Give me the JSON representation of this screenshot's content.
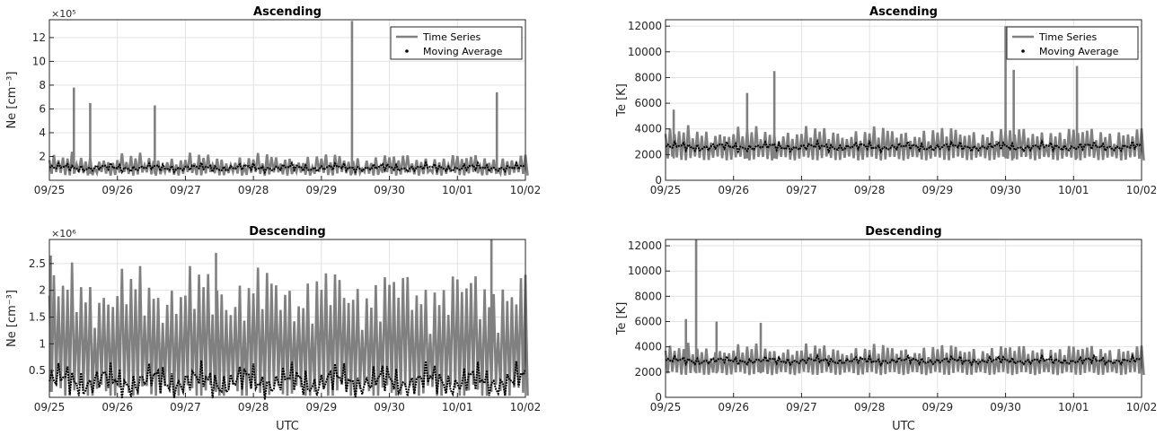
{
  "colors": {
    "time_series": "#808080",
    "moving_average": "#000000",
    "grid": "#e3e3e3",
    "axis": "#262626"
  },
  "chart_data": [
    {
      "id": "ne-asc",
      "type": "line",
      "title": "Ascending",
      "xlabel": "",
      "ylabel": "Ne [cm⁻³]",
      "exponent_label": "×10⁵",
      "ylim": [
        0,
        13.5
      ],
      "yticks": [
        2,
        4,
        6,
        8,
        10,
        12
      ],
      "ytick_labels": [
        "2",
        "4",
        "6",
        "8",
        "10",
        "12"
      ],
      "xticks": [
        "09/25",
        "09/26",
        "09/27",
        "09/28",
        "09/29",
        "09/30",
        "10/01",
        "10/02"
      ],
      "grid": true,
      "legend_placement": "top-right",
      "legend": [
        "Time Series",
        "Moving Average"
      ],
      "model": {
        "max_base": 1.7,
        "min_base": 0.55,
        "ma_base": 1.05,
        "amp": 0.5
      },
      "series": [
        {
          "name": "Time Series",
          "x": [
            0,
            0.5,
            1,
            1.5,
            2,
            2.5,
            3,
            3.5,
            4,
            4.5,
            5,
            5.5,
            6,
            6.5,
            7
          ],
          "y": [
            3.5,
            7.8,
            3,
            5.8,
            2.2,
            3.4,
            2.5,
            3.8,
            3.2,
            13.4,
            3,
            6.2,
            4,
            7.4,
            3.2
          ]
        },
        {
          "name": "Moving Average",
          "x": [
            0,
            0.5,
            1,
            1.5,
            2,
            2.5,
            3,
            3.5,
            4,
            4.5,
            5,
            5.5,
            6,
            6.5,
            7
          ],
          "y": [
            1.1,
            1.6,
            0.9,
            1.5,
            1.1,
            1.4,
            1.2,
            1.3,
            1.2,
            2.2,
            1.1,
            1.8,
            1.6,
            1.4,
            1.3
          ]
        }
      ],
      "spikes": [
        [
          0.36,
          7.8
        ],
        [
          0.6,
          6.5
        ],
        [
          1.55,
          6.3
        ],
        [
          4.45,
          13.4
        ],
        [
          6.58,
          7.4
        ]
      ]
    },
    {
      "id": "te-asc",
      "type": "line",
      "title": "Ascending",
      "xlabel": "",
      "ylabel": "Te [K]",
      "ylim": [
        0,
        12500
      ],
      "yticks": [
        0,
        2000,
        4000,
        6000,
        8000,
        10000,
        12000
      ],
      "ytick_labels": [
        "0",
        "2000",
        "4000",
        "6000",
        "8000",
        "10000",
        "12000"
      ],
      "xticks": [
        "09/25",
        "09/26",
        "09/27",
        "09/28",
        "09/29",
        "09/30",
        "10/01",
        "10/02"
      ],
      "grid": true,
      "legend_placement": "top-right",
      "legend": [
        "Time Series",
        "Moving Average"
      ],
      "model": {
        "max_base": 3600,
        "min_base": 1700,
        "ma_base": 2600,
        "amp": 500
      },
      "series": [
        {
          "name": "Time Series",
          "x": [
            0,
            0.5,
            1,
            1.5,
            2,
            2.5,
            3,
            3.5,
            4,
            4.5,
            5,
            5.5,
            6,
            6.5,
            7
          ],
          "y": [
            5500,
            4800,
            6800,
            8500,
            3600,
            3400,
            3800,
            3500,
            4000,
            4200,
            12000,
            8600,
            8900,
            3900,
            3600
          ]
        },
        {
          "name": "Moving Average",
          "x": [
            0,
            0.5,
            1,
            1.5,
            2,
            2.5,
            3,
            3.5,
            4,
            4.5,
            5,
            5.5,
            6,
            6.5,
            7
          ],
          "y": [
            3100,
            2900,
            2800,
            2700,
            2500,
            2400,
            2500,
            2600,
            2500,
            2600,
            2700,
            2500,
            2400,
            2500,
            2400
          ]
        }
      ],
      "spikes": [
        [
          0.12,
          5500
        ],
        [
          1.2,
          6800
        ],
        [
          1.6,
          8500
        ],
        [
          5.0,
          12000
        ],
        [
          5.12,
          8600
        ],
        [
          6.05,
          8900
        ]
      ]
    },
    {
      "id": "ne-desc",
      "type": "line",
      "title": "Descending",
      "xlabel": "UTC",
      "ylabel": "Ne [cm⁻³]",
      "exponent_label": "×10⁶",
      "ylim": [
        0,
        2.95
      ],
      "yticks": [
        0.5,
        1,
        1.5,
        2,
        2.5
      ],
      "ytick_labels": [
        "0.5",
        "1",
        "1.5",
        "2",
        "2.5"
      ],
      "xticks": [
        "09/25",
        "09/26",
        "09/27",
        "09/28",
        "09/29",
        "09/30",
        "10/01",
        "10/02"
      ],
      "grid": true,
      "legend_placement": "none",
      "legend": [],
      "model": {
        "max_base": 1.9,
        "min_base": 0.1,
        "ma_base": 0.3,
        "amp": 0.45
      },
      "series": [
        {
          "name": "Time Series",
          "x": [
            0,
            0.5,
            1,
            1.5,
            2,
            2.5,
            3,
            3.5,
            4,
            4.5,
            5,
            5.5,
            6,
            6.5,
            7
          ],
          "y": [
            2.65,
            2.1,
            2.4,
            2.6,
            2.2,
            2.7,
            2.1,
            2.2,
            1.8,
            2.4,
            2.6,
            2.3,
            2.5,
            2.95,
            2.6
          ]
        },
        {
          "name": "Moving Average",
          "x": [
            0,
            0.5,
            1,
            1.5,
            2,
            2.5,
            3,
            3.5,
            4,
            4.5,
            5,
            5.5,
            6,
            6.5,
            7
          ],
          "y": [
            0.35,
            0.25,
            0.2,
            0.25,
            0.3,
            0.3,
            0.35,
            0.3,
            0.3,
            0.35,
            0.3,
            0.3,
            0.35,
            0.3,
            0.3
          ]
        }
      ],
      "spikes": [
        [
          6.5,
          2.95
        ],
        [
          0.02,
          2.65
        ],
        [
          2.45,
          2.7
        ]
      ]
    },
    {
      "id": "te-desc",
      "type": "line",
      "title": "Descending",
      "xlabel": "UTC",
      "ylabel": "Te [K]",
      "ylim": [
        0,
        12500
      ],
      "yticks": [
        0,
        2000,
        4000,
        6000,
        8000,
        10000,
        12000
      ],
      "ytick_labels": [
        "0",
        "2000",
        "4000",
        "6000",
        "8000",
        "10000",
        "12000"
      ],
      "xticks": [
        "09/25",
        "09/26",
        "09/27",
        "09/28",
        "09/29",
        "09/30",
        "10/01",
        "10/02"
      ],
      "grid": true,
      "legend_placement": "none",
      "legend": [],
      "model": {
        "max_base": 3700,
        "min_base": 1900,
        "ma_base": 2900,
        "amp": 450
      },
      "series": [
        {
          "name": "Time Series",
          "x": [
            0,
            0.5,
            1,
            1.5,
            2,
            2.5,
            3,
            3.5,
            4,
            4.5,
            5,
            5.5,
            6,
            6.5,
            7
          ],
          "y": [
            6200,
            12800,
            6000,
            5800,
            4500,
            4000,
            3900,
            3800,
            4200,
            4600,
            4100,
            4000,
            4400,
            4000,
            3800
          ]
        },
        {
          "name": "Moving Average",
          "x": [
            0,
            0.5,
            1,
            1.5,
            2,
            2.5,
            3,
            3.5,
            4,
            4.5,
            5,
            5.5,
            6,
            6.5,
            7
          ],
          "y": [
            3000,
            3800,
            3500,
            3300,
            3100,
            3000,
            2900,
            2800,
            2800,
            3000,
            3000,
            2800,
            2900,
            2800,
            2700
          ]
        }
      ],
      "spikes": [
        [
          0.45,
          12800
        ],
        [
          0.3,
          6200
        ],
        [
          0.75,
          6000
        ],
        [
          1.4,
          5900
        ]
      ]
    }
  ]
}
